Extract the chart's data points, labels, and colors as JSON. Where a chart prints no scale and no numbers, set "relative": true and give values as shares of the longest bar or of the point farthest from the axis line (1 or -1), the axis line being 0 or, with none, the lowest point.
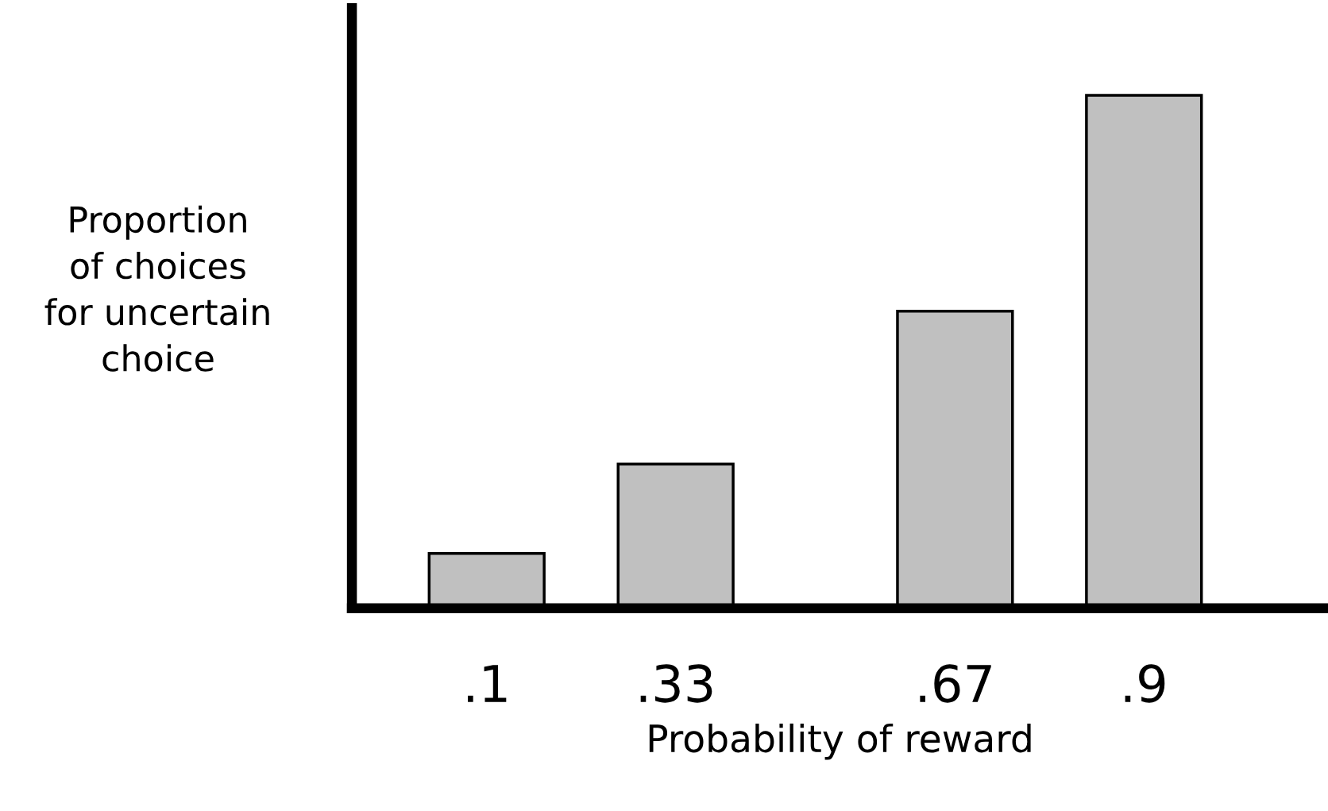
{
  "chart_data": {
    "type": "bar",
    "relative": true,
    "x": [
      0.1,
      0.33,
      0.67,
      0.9
    ],
    "values": [
      0.107,
      0.281,
      0.579,
      1
    ],
    "color": "#c0c0c0",
    "xlim": [
      -0.064,
      1.124
    ],
    "xticks": [
      {
        "value": 0.1,
        "label": ".1"
      },
      {
        "value": 0.33,
        "label": ".33"
      },
      {
        "value": 0.67,
        "label": ".67"
      },
      {
        "value": 0.9,
        "label": ".9"
      }
    ],
    "xlabel": "Probability of reward",
    "ylabel": "Proportion\nof choices\nfor uncertain\nchoice",
    "grid": false,
    "legend": false
  }
}
